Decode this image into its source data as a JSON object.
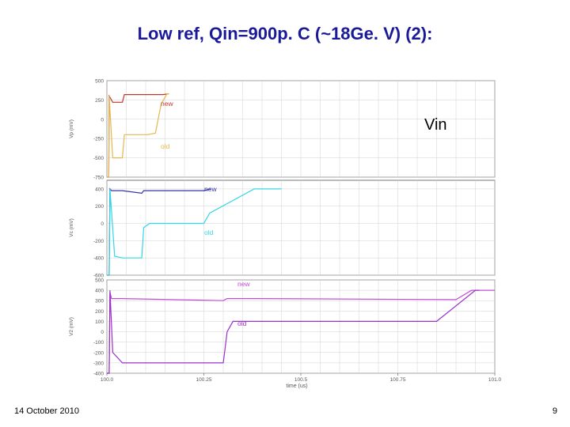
{
  "slide": {
    "title": "Low ref, Qin=900p. C (~18Ge. V) (2):",
    "date": "14 October 2010",
    "page_number": "9",
    "signal_label": "Vin"
  },
  "colors": {
    "title": "#1a1a99",
    "new_vin": "#c0392b",
    "old_vin": "#e6b84a",
    "new_vc": "#3333aa",
    "old_vc": "#33d6e6",
    "new_v2": "#c24bd6",
    "old_v2": "#9b30c9",
    "grid": "#d0d0d0"
  },
  "chart_data": [
    {
      "type": "line",
      "title": "",
      "ylabel": "Vp (mV)",
      "xlabel": "",
      "ylim": [
        -750,
        500
      ],
      "yticks": [
        {
          "value": 500,
          "label": "500"
        },
        {
          "value": 250,
          "label": "250"
        },
        {
          "value": 0,
          "label": "0"
        },
        {
          "value": -250,
          "label": "-250"
        },
        {
          "value": -500,
          "label": "-500"
        },
        {
          "value": -750,
          "label": "-750"
        }
      ],
      "grid": true,
      "series": [
        {
          "name": "new",
          "color_key": "new_vin",
          "x": [
            100.0,
            100.005,
            100.006,
            100.015,
            100.04,
            100.045,
            100.145,
            100.158,
            100.16
          ],
          "y": [
            -750,
            -750,
            300,
            220,
            220,
            320,
            320,
            330,
            330
          ]
        },
        {
          "name": "old",
          "color_key": "old_vin",
          "x": [
            100.0,
            100.005,
            100.006,
            100.015,
            100.04,
            100.045,
            100.105,
            100.125,
            100.14,
            100.155,
            100.16
          ],
          "y": [
            -750,
            -750,
            300,
            -500,
            -500,
            -200,
            -200,
            -180,
            200,
            330,
            330
          ]
        }
      ]
    },
    {
      "type": "line",
      "title": "",
      "ylabel": "Vc (mV)",
      "xlabel": "",
      "ylim": [
        -600,
        500
      ],
      "yticks": [
        {
          "value": 400,
          "label": "400"
        },
        {
          "value": 200,
          "label": "200"
        },
        {
          "value": 0,
          "label": "0"
        },
        {
          "value": -200,
          "label": "-200"
        },
        {
          "value": -400,
          "label": "-400"
        },
        {
          "value": -600,
          "label": "-600"
        }
      ],
      "grid": true,
      "series": [
        {
          "name": "new",
          "color_key": "new_vc",
          "x": [
            100.0,
            100.006,
            100.008,
            100.012,
            100.04,
            100.09,
            100.095,
            100.13,
            100.25,
            100.267
          ],
          "y": [
            -600,
            -600,
            400,
            380,
            380,
            350,
            380,
            380,
            380,
            400
          ]
        },
        {
          "name": "old",
          "color_key": "old_vc",
          "x": [
            100.0,
            100.006,
            100.008,
            100.02,
            100.04,
            100.09,
            100.095,
            100.11,
            100.13,
            100.25,
            100.265,
            100.38,
            100.42,
            100.45
          ],
          "y": [
            -600,
            -600,
            400,
            -380,
            -400,
            -400,
            -50,
            0,
            0,
            0,
            120,
            400,
            400,
            400
          ]
        }
      ]
    },
    {
      "type": "line",
      "title": "",
      "ylabel": "V2 (mV)",
      "xlabel": "time (us)",
      "ylim": [
        -400,
        500
      ],
      "xlim": [
        100.0,
        101.0
      ],
      "xticks": [
        {
          "value": 100.0,
          "label": "100.0"
        },
        {
          "value": 100.25,
          "label": "100.25"
        },
        {
          "value": 100.5,
          "label": "100.5"
        },
        {
          "value": 100.75,
          "label": "100.75"
        },
        {
          "value": 101.0,
          "label": "101.0"
        }
      ],
      "yticks": [
        {
          "value": 500,
          "label": "500"
        },
        {
          "value": 400,
          "label": "400"
        },
        {
          "value": 300,
          "label": "300"
        },
        {
          "value": 200,
          "label": "200"
        },
        {
          "value": 100,
          "label": "100"
        },
        {
          "value": 0,
          "label": "0"
        },
        {
          "value": -100,
          "label": "-100"
        },
        {
          "value": -200,
          "label": "-200"
        },
        {
          "value": -300,
          "label": "-300"
        },
        {
          "value": -400,
          "label": "-400"
        }
      ],
      "grid": true,
      "series": [
        {
          "name": "new",
          "color_key": "new_v2",
          "x": [
            100.0,
            100.006,
            100.008,
            100.012,
            100.04,
            100.3,
            100.31,
            100.38,
            100.9,
            100.94,
            101.0
          ],
          "y": [
            -400,
            -400,
            380,
            320,
            320,
            300,
            320,
            320,
            310,
            400,
            400
          ]
        },
        {
          "name": "old",
          "color_key": "old_v2",
          "x": [
            100.0,
            100.006,
            100.008,
            100.015,
            100.04,
            100.3,
            100.305,
            100.31,
            100.325,
            100.33,
            100.85,
            100.95,
            100.96
          ],
          "y": [
            -400,
            -400,
            400,
            -200,
            -300,
            -300,
            -150,
            0,
            100,
            100,
            100,
            400,
            400
          ]
        }
      ]
    }
  ]
}
